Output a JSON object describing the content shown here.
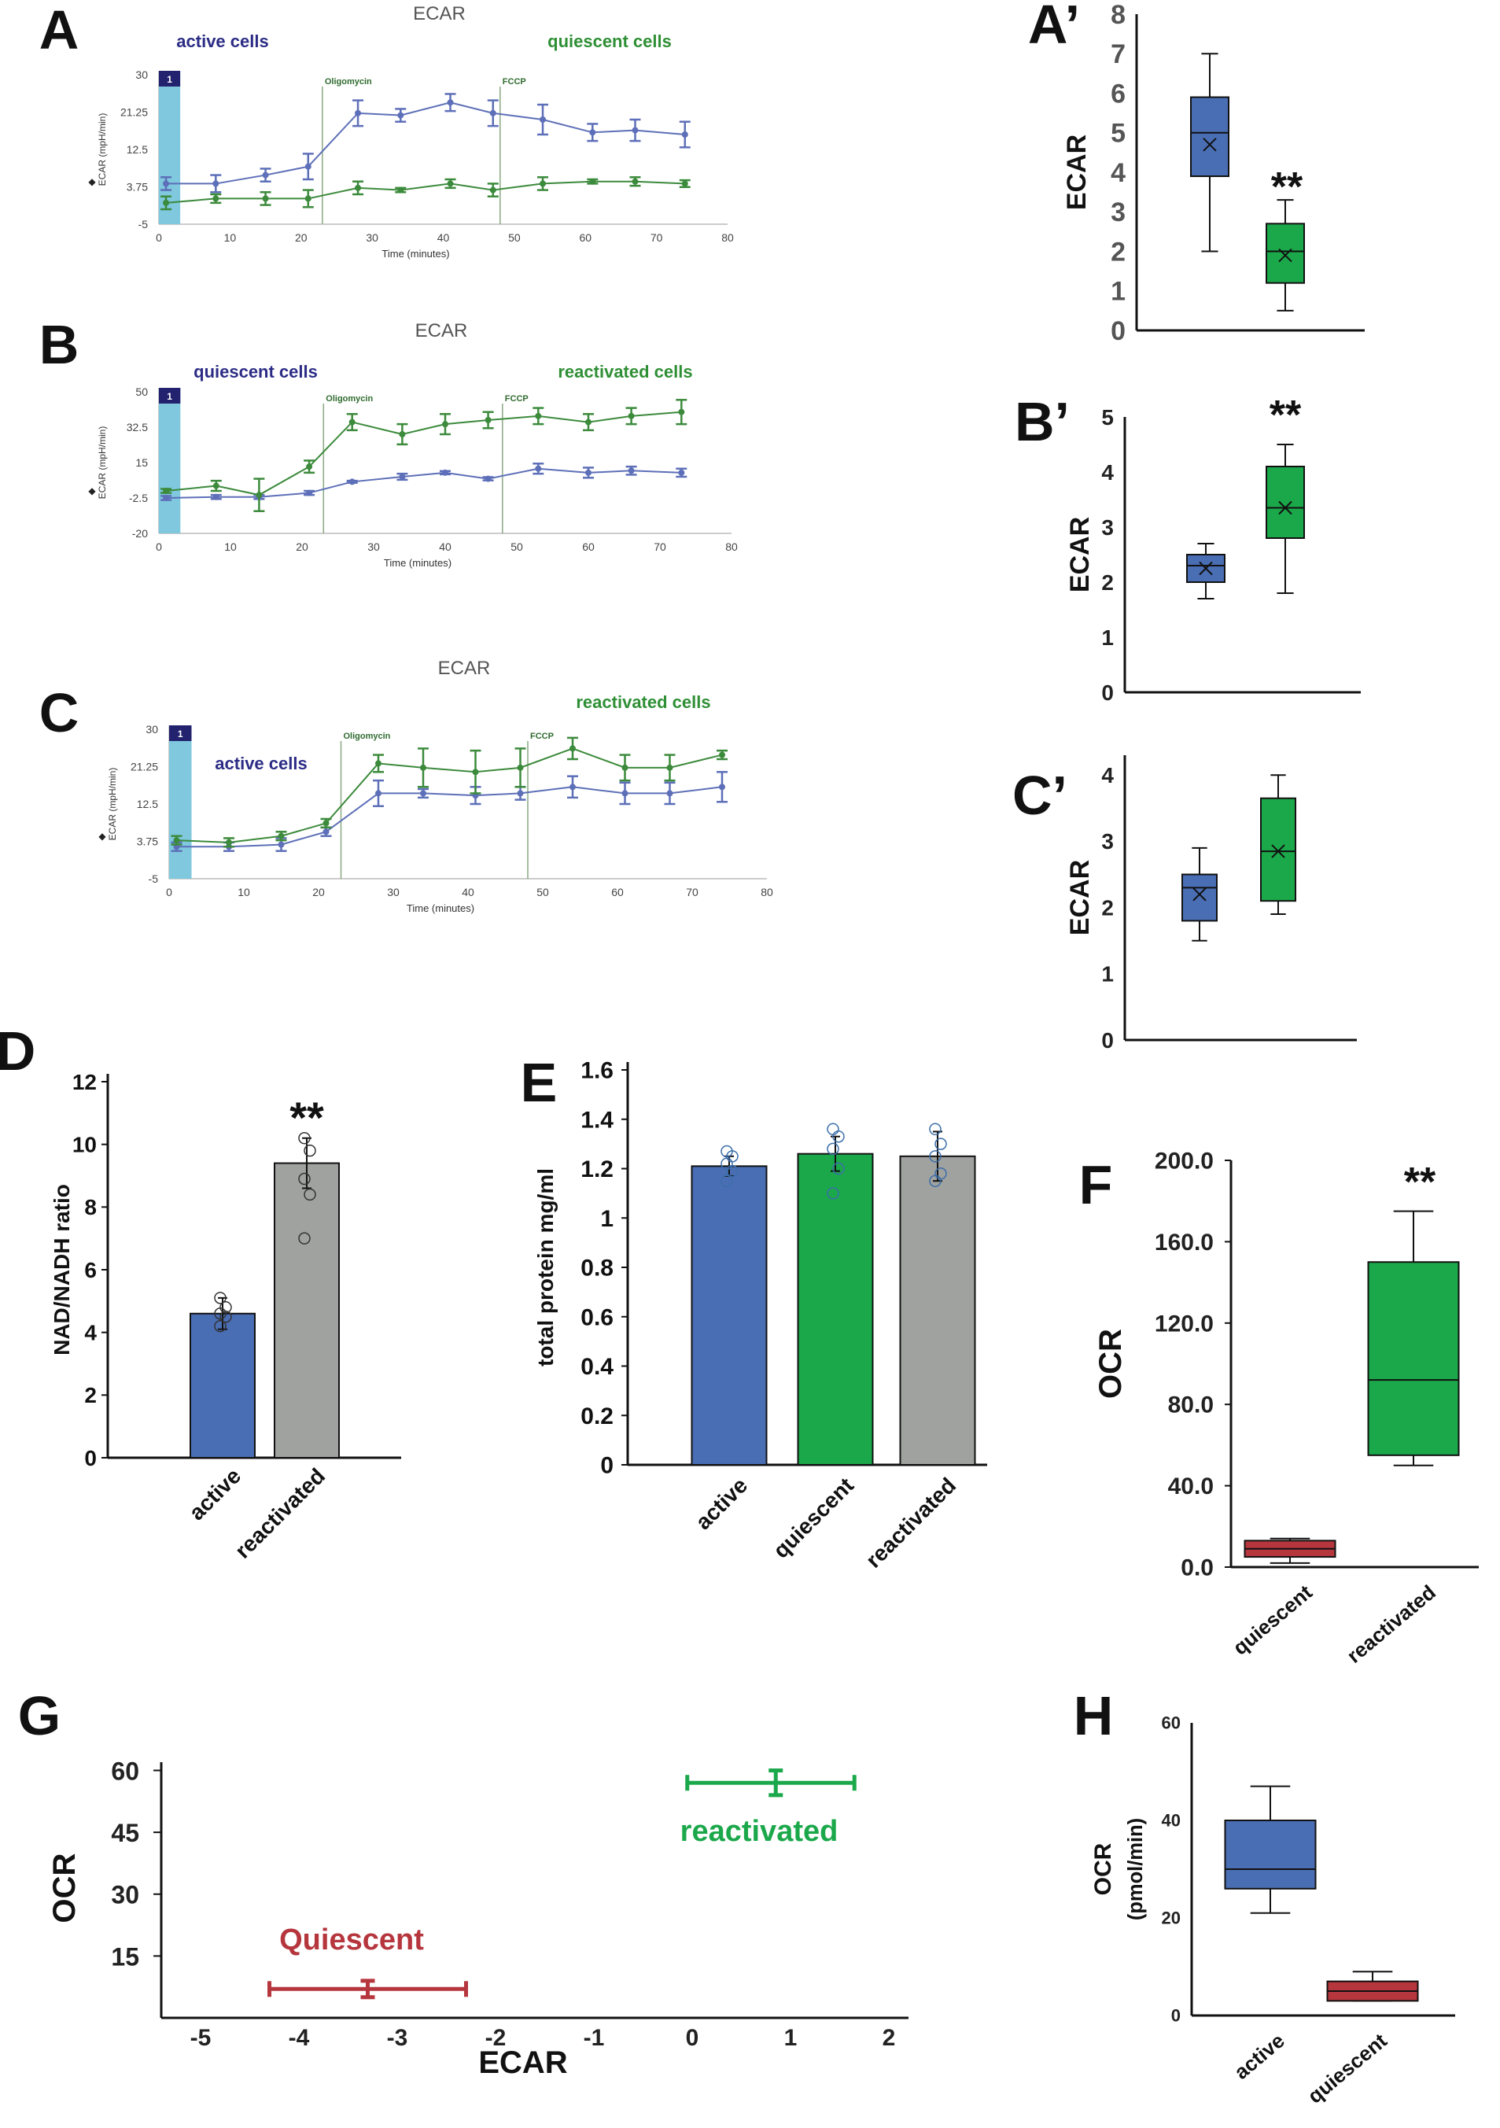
{
  "colors": {
    "blue": "#4a6eb4",
    "green": "#1ba84a",
    "gray": "#a0a2a0",
    "red": "#b6363e",
    "lineBlue": "#5d6fb8",
    "lineGreen": "#3c8a3c",
    "textNavy": "#2c2c86",
    "textGreen": "#2f8f35",
    "injection": "#7fc8de"
  },
  "panels": {
    "A": "A",
    "B": "B",
    "C": "C",
    "Ap": "A’",
    "Bp": "B’",
    "Cp": "C’",
    "D": "D",
    "E": "E",
    "F": "F",
    "G": "G",
    "H": "H"
  },
  "chart_data": [
    {
      "id": "A",
      "type": "line",
      "title": "ECAR",
      "xlabel": "Time (minutes)",
      "ylabel": "ECAR (mpH/min)",
      "ylim": [
        -5,
        30
      ],
      "yticks": [
        "30",
        "21.25",
        "12.5",
        "3.75",
        "-5"
      ],
      "xticks": [
        "0",
        "10",
        "20",
        "30",
        "40",
        "50",
        "60",
        "70",
        "80"
      ],
      "injections": [
        "1",
        "Oligomycin",
        "FCCP"
      ],
      "group_left": "active cells",
      "group_right": "quiescent cells",
      "series": [
        {
          "name": "active cells",
          "x": [
            1,
            8,
            15,
            21,
            28,
            34,
            41,
            47,
            54,
            61,
            67,
            74
          ],
          "y": [
            4.5,
            4.5,
            6.5,
            8.5,
            21,
            20.5,
            23.5,
            21,
            19.5,
            16.5,
            17,
            16
          ],
          "err": [
            1.5,
            2,
            1.5,
            3,
            3,
            1.5,
            2,
            3,
            3.5,
            2,
            2.5,
            3
          ]
        },
        {
          "name": "quiescent cells",
          "x": [
            1,
            8,
            15,
            21,
            28,
            34,
            41,
            47,
            54,
            61,
            67,
            74
          ],
          "y": [
            0,
            1,
            1,
            1,
            3.5,
            3,
            4.5,
            3,
            4.5,
            5,
            5,
            4.5
          ],
          "err": [
            1.5,
            1,
            1.5,
            2,
            1.5,
            0.5,
            1,
            1.5,
            1.5,
            0.5,
            1,
            0.8
          ]
        }
      ]
    },
    {
      "id": "B",
      "type": "line",
      "title": "ECAR",
      "xlabel": "Time (minutes)",
      "ylabel": "ECAR (mpH/min)",
      "ylim": [
        -20,
        50
      ],
      "yticks": [
        "50",
        "32.5",
        "15",
        "-2.5",
        "-20"
      ],
      "xticks": [
        "0",
        "10",
        "20",
        "30",
        "40",
        "50",
        "60",
        "70",
        "80"
      ],
      "injections": [
        "1",
        "Oligomycin",
        "FCCP"
      ],
      "group_left": "quiescent cells",
      "group_right": "reactivated cells",
      "series": [
        {
          "name": "quiescent cells",
          "x": [
            1,
            8,
            14,
            21,
            27,
            34,
            40,
            46,
            53,
            60,
            66,
            73
          ],
          "y": [
            -2.5,
            -2,
            -2,
            0,
            5.5,
            8,
            10,
            7,
            12,
            10,
            11,
            10
          ],
          "err": [
            1,
            1,
            1,
            1,
            0.5,
            1.5,
            0.8,
            0.8,
            2.5,
            2.5,
            2,
            2
          ]
        },
        {
          "name": "reactivated cells",
          "x": [
            1,
            8,
            14,
            21,
            27,
            34,
            40,
            46,
            53,
            60,
            66,
            73
          ],
          "y": [
            1,
            3.5,
            -1,
            13,
            35,
            29,
            34,
            36,
            38,
            35,
            38,
            40
          ],
          "err": [
            1,
            2.5,
            8,
            3,
            4,
            5,
            5,
            4,
            4,
            4,
            4,
            6
          ]
        }
      ]
    },
    {
      "id": "C",
      "type": "line",
      "title": "ECAR",
      "xlabel": "Time (minutes)",
      "ylabel": "ECAR (mpH/min)",
      "ylim": [
        -5,
        30
      ],
      "yticks": [
        "30",
        "21.25",
        "12.5",
        "3.75",
        "-5"
      ],
      "xticks": [
        "0",
        "10",
        "20",
        "30",
        "40",
        "50",
        "60",
        "70",
        "80"
      ],
      "injections": [
        "1",
        "Oligomycin",
        "FCCP"
      ],
      "group_left": "active cells",
      "group_right": "reactivated cells",
      "series": [
        {
          "name": "active cells",
          "x": [
            1,
            8,
            15,
            21,
            28,
            34,
            41,
            47,
            54,
            61,
            67,
            74
          ],
          "y": [
            2.5,
            2.5,
            3,
            6,
            15,
            15,
            14.5,
            15,
            16.5,
            15,
            15,
            16.5
          ],
          "err": [
            1,
            1,
            1.5,
            1,
            3,
            1,
            2,
            1.5,
            2.5,
            2.5,
            2.5,
            3.5
          ]
        },
        {
          "name": "reactivated cells",
          "x": [
            1,
            8,
            15,
            21,
            28,
            34,
            41,
            47,
            54,
            61,
            67,
            74
          ],
          "y": [
            4,
            3.5,
            5,
            8,
            22,
            21,
            20,
            21,
            25.5,
            21,
            21,
            24
          ],
          "err": [
            1,
            1,
            1,
            1,
            2,
            4.5,
            5,
            4.5,
            2.5,
            3,
            3,
            1
          ]
        }
      ]
    },
    {
      "id": "Ap",
      "type": "box",
      "ylabel": "ECAR",
      "ylim": [
        0,
        8
      ],
      "yticks": [
        "0",
        "1",
        "2",
        "3",
        "4",
        "5",
        "6",
        "7",
        "8"
      ],
      "significance": "**",
      "groups": [
        {
          "color": "blue",
          "min": 2,
          "q1": 3.9,
          "median": 5,
          "q3": 5.9,
          "max": 7,
          "mean": 4.7
        },
        {
          "color": "green",
          "min": 0.5,
          "q1": 1.2,
          "median": 2,
          "q3": 2.7,
          "max": 3.3,
          "mean": 1.9
        }
      ]
    },
    {
      "id": "Bp",
      "type": "box",
      "ylabel": "ECAR",
      "ylim": [
        0,
        5
      ],
      "yticks": [
        "0",
        "1",
        "2",
        "3",
        "4",
        "5"
      ],
      "significance": "**",
      "groups": [
        {
          "color": "blue",
          "min": 1.7,
          "q1": 2,
          "median": 2.3,
          "q3": 2.5,
          "max": 2.7,
          "mean": 2.25
        },
        {
          "color": "green",
          "min": 1.8,
          "q1": 2.8,
          "median": 3.35,
          "q3": 4.1,
          "max": 4.5,
          "mean": 3.35
        }
      ]
    },
    {
      "id": "Cp",
      "type": "box",
      "ylabel": "ECAR",
      "ylim": [
        0,
        4.3
      ],
      "yticks": [
        "0",
        "1",
        "2",
        "3",
        "4"
      ],
      "significance": "",
      "groups": [
        {
          "color": "blue",
          "min": 1.5,
          "q1": 1.8,
          "median": 2.3,
          "q3": 2.5,
          "max": 2.9,
          "mean": 2.2
        },
        {
          "color": "green",
          "min": 1.9,
          "q1": 2.1,
          "median": 2.85,
          "q3": 3.65,
          "max": 4,
          "mean": 2.85
        }
      ]
    },
    {
      "id": "D",
      "type": "bar",
      "ylabel": "NAD/NADH ratio",
      "ylim": [
        0,
        12
      ],
      "yticks": [
        "0",
        "2",
        "4",
        "6",
        "8",
        "10",
        "12"
      ],
      "significance": "**",
      "categories": [
        "active",
        "reactivated"
      ],
      "values": [
        4.6,
        9.4
      ],
      "err": [
        0.5,
        0.8
      ],
      "colors": [
        "blue",
        "gray"
      ],
      "points": [
        [
          4.2,
          4.5,
          4.6,
          4.8,
          5.1
        ],
        [
          7,
          8.4,
          8.9,
          9.8,
          10.2
        ]
      ]
    },
    {
      "id": "E",
      "type": "bar",
      "ylabel": "total protein mg/ml",
      "ylim": [
        0,
        1.6
      ],
      "yticks": [
        "0",
        "0.2",
        "0.4",
        "0.6",
        "0.8",
        "1",
        "1.2",
        "1.4",
        "1.6"
      ],
      "categories": [
        "active",
        "quiescent",
        "reactivated"
      ],
      "values": [
        1.21,
        1.26,
        1.25
      ],
      "err": [
        0.04,
        0.07,
        0.1
      ],
      "colors": [
        "blue",
        "green",
        "gray"
      ],
      "points": [
        [
          1.15,
          1.19,
          1.22,
          1.25,
          1.27
        ],
        [
          1.1,
          1.2,
          1.28,
          1.33,
          1.36
        ],
        [
          1.15,
          1.18,
          1.25,
          1.3,
          1.36
        ]
      ]
    },
    {
      "id": "F",
      "type": "box",
      "ylabel": "OCR",
      "ylim": [
        0,
        200
      ],
      "yticks": [
        "0.0",
        "40.0",
        "80.0",
        "120.0",
        "160.0",
        "200.0"
      ],
      "significance": "**",
      "categories": [
        "quiescent",
        "reactivated"
      ],
      "groups": [
        {
          "color": "red",
          "min": 2,
          "q1": 5,
          "median": 9,
          "q3": 13,
          "max": 14
        },
        {
          "color": "green",
          "min": 50,
          "q1": 55,
          "median": 92,
          "q3": 150,
          "max": 175
        }
      ]
    },
    {
      "id": "G",
      "type": "scatter",
      "xlabel": "ECAR",
      "ylabel": "OCR",
      "xlim": [
        -5.5,
        2.3
      ],
      "ylim": [
        0,
        62
      ],
      "xticks": [
        "-5",
        "-4",
        "-3",
        "-2",
        "-1",
        "0",
        "1",
        "2"
      ],
      "yticks": [
        "15",
        "30",
        "45",
        "60"
      ],
      "points": [
        {
          "name": "Quiescent",
          "x": -3.3,
          "y": 7,
          "xerr_low": -4.3,
          "xerr_high": -2.3,
          "yerr": 2,
          "color": "red"
        },
        {
          "name": "reactivated",
          "x": 0.85,
          "y": 57,
          "xerr_low": -0.05,
          "xerr_high": 1.65,
          "yerr": 3,
          "color": "green"
        }
      ]
    },
    {
      "id": "H",
      "type": "box",
      "ylabel": "OCR",
      "ylabel2": "(pmol/min)",
      "ylim": [
        0,
        60
      ],
      "yticks": [
        "0",
        "20",
        "40",
        "60"
      ],
      "categories": [
        "active",
        "quiescent"
      ],
      "groups": [
        {
          "color": "blue",
          "min": 21,
          "q1": 26,
          "median": 30,
          "q3": 40,
          "max": 47
        },
        {
          "color": "red",
          "min": 3,
          "q1": 3,
          "median": 5,
          "q3": 7,
          "max": 9
        }
      ]
    }
  ]
}
